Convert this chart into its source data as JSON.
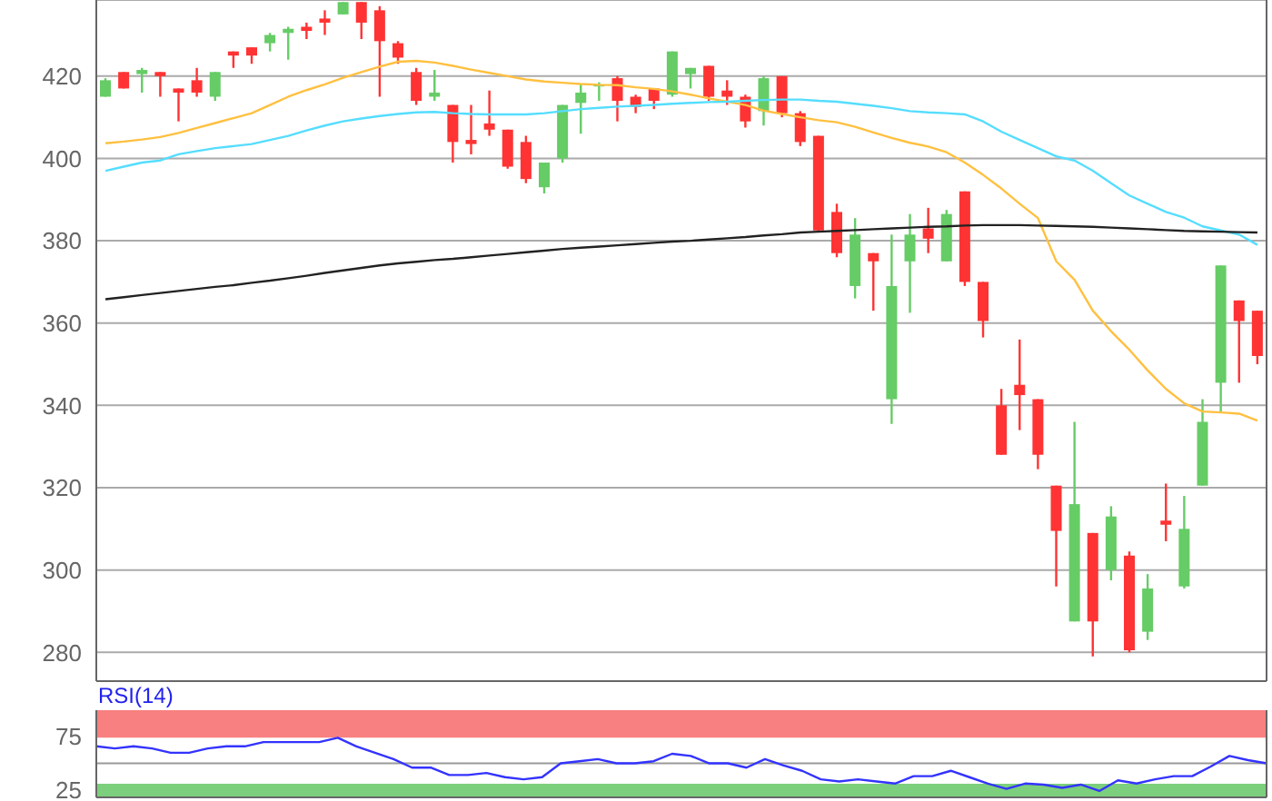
{
  "chart_data": [
    {
      "type": "candlestick",
      "categories": [
        null,
        null,
        null,
        null,
        null,
        null,
        null,
        null,
        null,
        null,
        null,
        null,
        null,
        null,
        null,
        null,
        null,
        null,
        null,
        null,
        null,
        null,
        null,
        null,
        null,
        null,
        null,
        null,
        null,
        null,
        null,
        null,
        null,
        null,
        null,
        null,
        null,
        null,
        null,
        null,
        null,
        null,
        null,
        null,
        null,
        null,
        null,
        null,
        null,
        null,
        null,
        null,
        null,
        null,
        null,
        null,
        null,
        null,
        null,
        null,
        null,
        null,
        null,
        null
      ],
      "ohlc": [
        [
          415,
          419.5,
          415,
          419
        ],
        [
          421,
          421,
          417,
          417
        ],
        [
          420.5,
          422,
          416,
          421.5
        ],
        [
          421,
          421,
          415,
          420
        ],
        [
          417,
          417,
          409,
          416
        ],
        [
          419,
          422,
          415,
          416
        ],
        [
          415,
          421,
          414,
          421
        ],
        [
          426,
          426,
          422,
          425
        ],
        [
          427,
          427,
          423,
          425
        ],
        [
          428,
          430.5,
          426,
          430
        ],
        [
          430.5,
          432,
          424,
          431.5
        ],
        [
          432,
          433,
          429,
          431
        ],
        [
          434,
          436,
          430,
          433
        ],
        [
          435,
          438,
          435,
          438
        ],
        [
          438,
          438,
          429,
          433
        ],
        [
          436,
          437,
          415,
          428.5
        ],
        [
          428,
          428.5,
          423,
          424.5
        ],
        [
          421,
          422,
          413,
          414
        ],
        [
          415,
          421.5,
          414,
          416
        ],
        [
          413,
          413,
          399,
          404
        ],
        [
          404.5,
          413,
          401,
          403.5
        ],
        [
          408.5,
          416.5,
          405.5,
          407
        ],
        [
          407,
          407,
          397.5,
          398
        ],
        [
          404,
          405.5,
          394,
          395
        ],
        [
          393,
          399,
          391.5,
          399
        ],
        [
          400,
          413,
          399,
          413
        ],
        [
          413.5,
          418,
          406,
          416
        ],
        [
          417.5,
          418.5,
          414,
          418
        ],
        [
          419.5,
          420,
          409,
          414
        ],
        [
          415,
          415.5,
          411,
          412.5
        ],
        [
          417,
          417,
          412,
          414
        ],
        [
          415.5,
          426,
          415,
          426
        ],
        [
          420.5,
          422,
          417,
          422
        ],
        [
          422.5,
          422.5,
          414,
          415
        ],
        [
          416.5,
          419,
          413,
          415
        ],
        [
          415,
          415.5,
          407.5,
          409
        ],
        [
          411.5,
          420,
          408,
          419.5
        ],
        [
          420,
          420,
          410,
          411
        ],
        [
          411,
          411.5,
          403,
          404
        ],
        [
          405.5,
          405.5,
          382,
          382.5
        ],
        [
          387,
          389,
          376,
          377
        ],
        [
          369,
          385.5,
          366,
          381.5
        ],
        [
          377,
          377,
          363,
          375
        ],
        [
          341.5,
          381.5,
          335.5,
          369
        ],
        [
          375,
          386.5,
          362.5,
          381.5
        ],
        [
          383,
          388,
          377,
          380.5
        ],
        [
          375,
          387.5,
          375,
          386.5
        ],
        [
          392,
          392,
          369,
          370
        ],
        [
          370,
          370,
          356.5,
          360.5
        ],
        [
          340,
          344,
          328,
          328
        ],
        [
          345,
          356,
          334,
          342.5
        ],
        [
          341.5,
          341.5,
          324.5,
          328
        ],
        [
          320.5,
          320.5,
          296,
          309.5
        ],
        [
          287.5,
          336,
          287.5,
          316
        ],
        [
          309,
          309,
          279,
          287.5
        ],
        [
          300,
          315.5,
          297.5,
          313
        ],
        [
          303.5,
          304.5,
          280,
          280.5
        ],
        [
          285,
          299,
          283,
          295.5
        ],
        [
          312,
          321,
          307,
          311
        ],
        [
          296,
          318,
          295.5,
          310
        ],
        [
          320.5,
          341.5,
          320.5,
          336
        ],
        [
          345.5,
          374,
          338.5,
          374
        ],
        [
          365.5,
          365.5,
          345.5,
          360.5
        ],
        [
          363,
          363,
          350,
          352
        ]
      ],
      "colors": [
        "#66cc66",
        "#ff3333",
        "#66cc66",
        "#ff3333",
        "#ff3333",
        "#ff3333",
        "#66cc66",
        "#ff3333",
        "#ff3333",
        "#66cc66",
        "#66cc66",
        "#ff3333",
        "#ff3333",
        "#66cc66",
        "#ff3333",
        "#ff3333",
        "#ff3333",
        "#ff3333",
        "#66cc66",
        "#ff3333",
        "#ff3333",
        "#ff3333",
        "#ff3333",
        "#ff3333",
        "#66cc66",
        "#66cc66",
        "#66cc66",
        "#66cc66",
        "#ff3333",
        "#ff3333",
        "#ff3333",
        "#66cc66",
        "#66cc66",
        "#ff3333",
        "#ff3333",
        "#ff3333",
        "#66cc66",
        "#ff3333",
        "#ff3333",
        "#ff3333",
        "#ff3333",
        "#66cc66",
        "#ff3333",
        "#66cc66",
        "#66cc66",
        "#ff3333",
        "#66cc66",
        "#ff3333",
        "#ff3333",
        "#ff3333",
        "#ff3333",
        "#ff3333",
        "#ff3333",
        "#66cc66",
        "#ff3333",
        "#66cc66",
        "#ff3333",
        "#66cc66",
        "#ff3333",
        "#66cc66",
        "#66cc66",
        "#66cc66",
        "#ff3333",
        "#ff3333"
      ],
      "series": [
        {
          "type": "line",
          "color": "#ffc040",
          "values": [
            403.7,
            404.1,
            404.6,
            405.2,
            406.2,
            407.4,
            408.6,
            409.8,
            411,
            413,
            415,
            416.6,
            418,
            419.6,
            421,
            422.3,
            423.5,
            423.7,
            423.3,
            422.5,
            421.6,
            420.8,
            420,
            419.2,
            418.7,
            418.4,
            418.1,
            417.9,
            417.8,
            417.3,
            416.9,
            416.3,
            415.5,
            414.6,
            413.8,
            413,
            411.6,
            410.8,
            410,
            409.3,
            408.8,
            407.7,
            406.3,
            405,
            403.8,
            402.9,
            401.5,
            399,
            396,
            392.7,
            389,
            385.5,
            375,
            370.5,
            363,
            358,
            353.5,
            348.5,
            344,
            340.5,
            338.5,
            338.3,
            338,
            336.3
          ]
        },
        {
          "type": "line",
          "color": "#55ddff",
          "values": [
            397,
            398,
            399,
            399.5,
            401,
            401.8,
            402.5,
            403,
            403.5,
            404.5,
            405.5,
            406.8,
            408,
            409,
            409.7,
            410.3,
            410.8,
            411.2,
            411.3,
            411,
            410.8,
            410.7,
            410.7,
            410.7,
            411,
            411.5,
            412,
            412.3,
            412.6,
            412.8,
            413,
            413.3,
            413.5,
            413.7,
            413.8,
            414,
            414.2,
            414.3,
            414.3,
            414,
            413.8,
            413.3,
            412.8,
            412.2,
            411.5,
            411.2,
            411,
            410.7,
            409,
            406.5,
            404.5,
            402.5,
            400.5,
            399.5,
            397,
            394,
            391,
            389,
            387,
            385.6,
            383.5,
            382.5,
            381.5,
            379
          ]
        },
        {
          "type": "line",
          "color": "#222222",
          "values": [
            365.8,
            366.3,
            366.8,
            367.3,
            367.8,
            368.3,
            368.8,
            369.2,
            369.8,
            370.3,
            370.9,
            371.5,
            372.2,
            372.8,
            373.4,
            374,
            374.5,
            374.9,
            375.3,
            375.6,
            376,
            376.4,
            376.8,
            377.2,
            377.6,
            378,
            378.3,
            378.6,
            378.9,
            379.2,
            379.5,
            379.8,
            380,
            380.3,
            380.6,
            380.9,
            381.3,
            381.6,
            382,
            382.2,
            382.4,
            382.6,
            382.8,
            383,
            383.2,
            383.4,
            383.5,
            383.7,
            383.8,
            383.8,
            383.8,
            383.7,
            383.6,
            383.5,
            383.4,
            383.2,
            383,
            382.8,
            382.6,
            382.4,
            382.3,
            382.2,
            382.1,
            382
          ]
        }
      ],
      "ylim": [
        273,
        438.5
      ],
      "yticks": [
        280,
        300,
        320,
        340,
        360,
        380,
        400,
        420
      ],
      "grid": "y",
      "tick_labels": "y"
    },
    {
      "type": "line",
      "title": "RSI(14)",
      "categories": [
        null,
        null,
        null,
        null,
        null,
        null,
        null,
        null,
        null,
        null,
        null,
        null,
        null,
        null,
        null,
        null,
        null,
        null,
        null,
        null,
        null,
        null,
        null,
        null,
        null,
        null,
        null,
        null,
        null,
        null,
        null,
        null,
        null,
        null,
        null,
        null,
        null,
        null,
        null,
        null,
        null,
        null,
        null,
        null,
        null,
        null,
        null,
        null,
        null,
        null,
        null,
        null,
        null,
        null,
        null,
        null,
        null,
        null,
        null,
        null,
        null,
        null,
        null,
        null
      ],
      "series": [
        {
          "color": "#3333ff",
          "values": [
            66,
            64,
            66,
            64,
            60,
            60,
            64,
            66,
            66,
            70,
            70,
            70,
            70,
            74,
            66,
            60,
            54,
            46,
            46,
            39,
            39,
            41,
            37,
            35,
            37,
            50,
            52,
            54,
            50,
            50,
            52,
            59,
            57,
            50,
            50,
            46,
            54,
            48,
            43,
            35,
            33,
            35,
            33,
            31,
            38,
            38,
            43,
            37,
            31,
            26,
            31,
            30,
            27,
            30,
            24,
            34,
            31,
            35,
            38,
            38,
            47,
            57,
            53,
            50
          ]
        }
      ],
      "ylim": [
        18,
        100
      ],
      "yticks": [
        25,
        75
      ],
      "tick_labels": "y",
      "bands": [
        {
          "axis": "y",
          "from": 75,
          "to": 100,
          "color": "#f88080"
        },
        {
          "axis": "y",
          "from": 18,
          "to": 30,
          "color": "#7ccf7c"
        }
      ],
      "ref_lines": [
        {
          "axis": "y",
          "value": 50,
          "color": "#999999"
        }
      ]
    }
  ]
}
